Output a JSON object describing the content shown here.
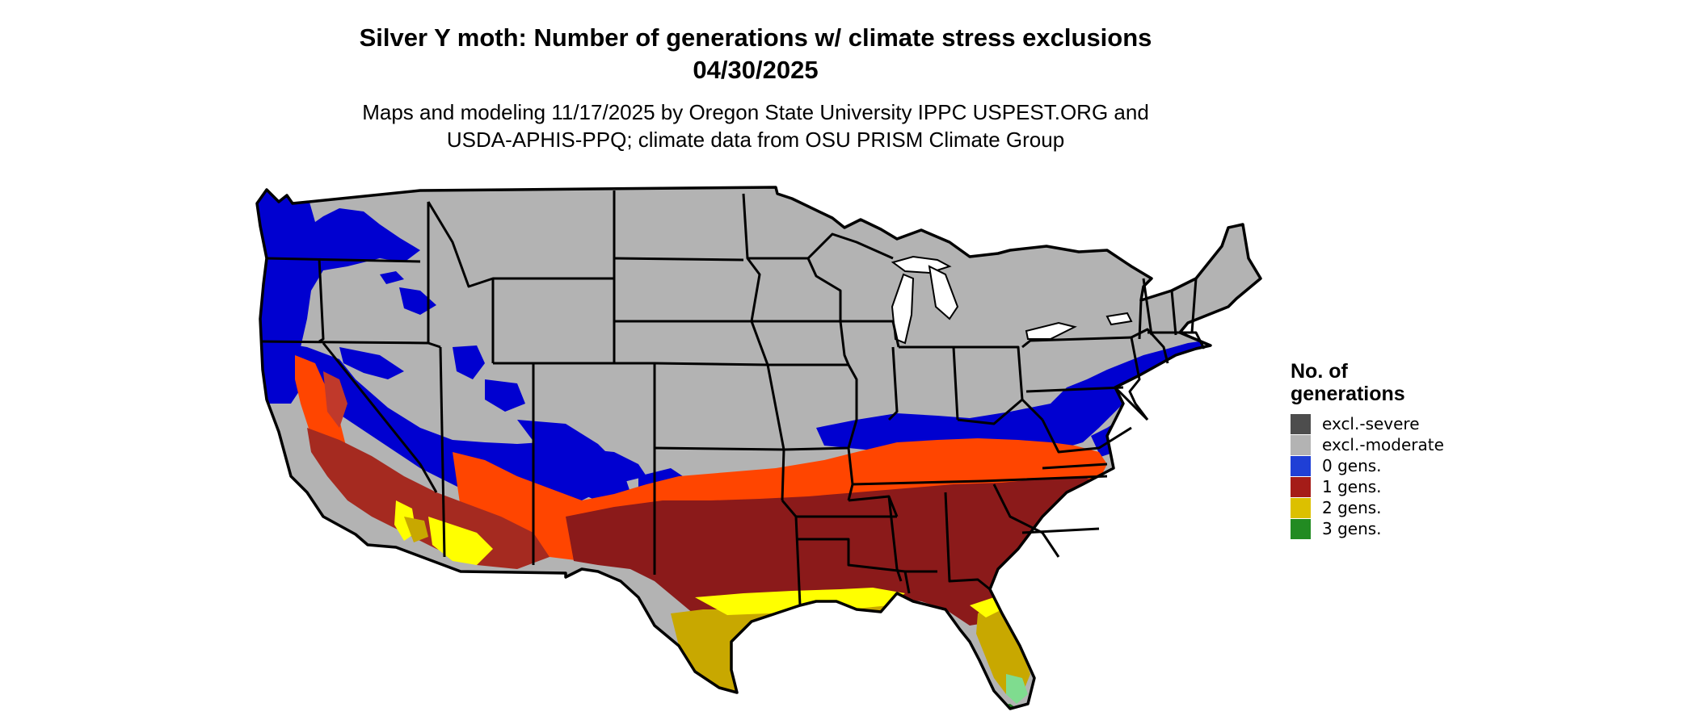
{
  "title": {
    "line1": "Silver Y moth: Number of generations w/ climate stress exclusions",
    "line2": "04/30/2025"
  },
  "subtitle": {
    "line1": "Maps and modeling 11/17/2025 by Oregon State University IPPC USPEST.ORG and",
    "line2": "USDA-APHIS-PPQ; climate data from OSU PRISM Climate Group"
  },
  "legend": {
    "title_line1": "No. of",
    "title_line2": "generations",
    "items": [
      {
        "label": "excl.-severe",
        "color": "#4d4d4d"
      },
      {
        "label": "excl.-moderate",
        "color": "#b3b3b3"
      },
      {
        "label": "0 gens.",
        "color": "#1f3fd6"
      },
      {
        "label": "1 gens.",
        "color": "#a51c18"
      },
      {
        "label": "2 gens.",
        "color": "#dcc000"
      },
      {
        "label": "3 gens.",
        "color": "#228b22"
      }
    ]
  },
  "map_colors": {
    "excluded_moderate": "#b3b3b3",
    "zero_gens": "#0000d0",
    "one_gens_dark": "#8b1a1a",
    "one_gens_orange": "#ff4500",
    "one_gens_light": "#c0392b",
    "two_gens_gold": "#c8a800",
    "two_gens_yellow": "#ffff00",
    "three_gens_lightgreen": "#7fdc8f",
    "three_gens": "#1a7a1a",
    "water": "#ffffff",
    "border": "#000000"
  }
}
